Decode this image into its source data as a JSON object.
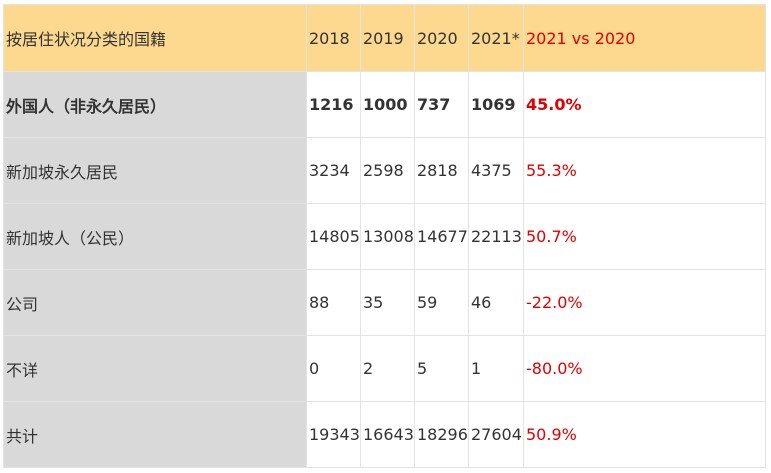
{
  "table": {
    "headers": [
      "按居住状况分类的国籍",
      "2018",
      "2019",
      "2020",
      "2021*",
      "2021 vs 2020"
    ],
    "rows": [
      {
        "label": "外国人（非永久居民）",
        "v2018": "1216",
        "v2019": "1000",
        "v2020": "737",
        "v2021": "1069",
        "change": "45.0%",
        "bold": true
      },
      {
        "label": "新加坡永久居民",
        "v2018": "3234",
        "v2019": "2598",
        "v2020": "2818",
        "v2021": "4375",
        "change": "55.3%"
      },
      {
        "label": "新加坡人（公民）",
        "v2018": "14805",
        "v2019": "13008",
        "v2020": "14677",
        "v2021": "22113",
        "change": "50.7%"
      },
      {
        "label": "公司",
        "v2018": "88",
        "v2019": "35",
        "v2020": "59",
        "v2021": "46",
        "change": "-22.0%"
      },
      {
        "label": "不详",
        "v2018": "0",
        "v2019": "2",
        "v2020": "5",
        "v2021": "1",
        "change": "-80.0%"
      },
      {
        "label": "共计",
        "v2018": "19343",
        "v2019": "16643",
        "v2020": "18296",
        "v2021": "27604",
        "change": "50.9%"
      }
    ]
  },
  "colors": {
    "header_bg": "#fcd98f",
    "label_bg": "#d9d9d9",
    "change_text": "#e00000",
    "body_text": "#333333",
    "border": "#e3e3e3"
  }
}
